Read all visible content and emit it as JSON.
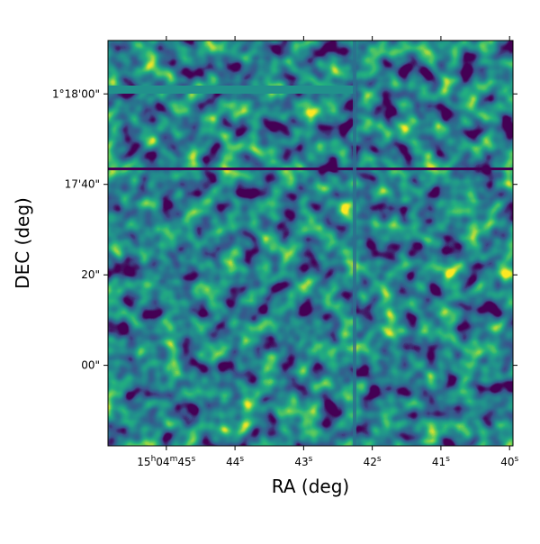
{
  "chart_data": {
    "type": "image",
    "xlabel": "RA (deg)",
    "ylabel": "DEC (deg)",
    "xlim": [
      45.85,
      39.95
    ],
    "xticks": [
      {
        "value": 45,
        "label": "15h04m45s"
      },
      {
        "value": 44,
        "label": "44s"
      },
      {
        "value": 43,
        "label": "43s"
      },
      {
        "value": 42,
        "label": "42s"
      },
      {
        "value": 41,
        "label": "41s"
      },
      {
        "value": 40,
        "label": "40s"
      }
    ],
    "ylim": [
      -17.8,
      71.8
    ],
    "yticks": [
      {
        "value": 60,
        "label": "1°18'00\""
      },
      {
        "value": 40,
        "label": "17'40\""
      },
      {
        "value": 20,
        "label": "20\""
      },
      {
        "value": 0,
        "label": "00\""
      }
    ],
    "colormap": "viridis"
  }
}
